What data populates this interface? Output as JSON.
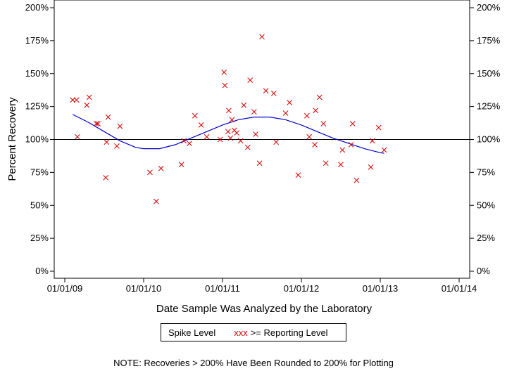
{
  "chart_data": {
    "type": "scatter",
    "xlabel": "Date Sample Was Analyzed by the Laboratory",
    "ylabel": "Percent Recovery",
    "x_ticks": [
      "01/01/09",
      "01/01/10",
      "01/01/11",
      "01/01/12",
      "01/01/13",
      "01/01/14"
    ],
    "xlim": [
      2009,
      2014
    ],
    "ylim": [
      0,
      200
    ],
    "y_ticks": [
      0,
      25,
      50,
      75,
      100,
      125,
      150,
      175,
      200
    ],
    "y_tick_labels": [
      "0%",
      "25%",
      "50%",
      "75%",
      "100%",
      "125%",
      "150%",
      "175%",
      "200%"
    ],
    "reference_line": 100,
    "x_axis_format": "decimal_year",
    "series": [
      {
        "name": ">= Reporting Level",
        "marker": "x",
        "color": "#d40000",
        "points": [
          [
            2009.1,
            130
          ],
          [
            2009.15,
            130
          ],
          [
            2009.16,
            102
          ],
          [
            2009.28,
            126
          ],
          [
            2009.31,
            132
          ],
          [
            2009.4,
            112
          ],
          [
            2009.42,
            112
          ],
          [
            2009.52,
            71
          ],
          [
            2009.53,
            98
          ],
          [
            2009.55,
            117
          ],
          [
            2009.66,
            95
          ],
          [
            2009.7,
            110
          ],
          [
            2010.08,
            75
          ],
          [
            2010.16,
            53
          ],
          [
            2010.22,
            78
          ],
          [
            2010.48,
            81
          ],
          [
            2010.51,
            99
          ],
          [
            2010.58,
            97
          ],
          [
            2010.65,
            118
          ],
          [
            2010.73,
            111
          ],
          [
            2010.8,
            102
          ],
          [
            2010.97,
            100
          ],
          [
            2011.02,
            151
          ],
          [
            2011.03,
            141
          ],
          [
            2011.07,
            106
          ],
          [
            2011.08,
            122
          ],
          [
            2011.1,
            101
          ],
          [
            2011.12,
            115
          ],
          [
            2011.15,
            107
          ],
          [
            2011.18,
            105
          ],
          [
            2011.23,
            99
          ],
          [
            2011.27,
            126
          ],
          [
            2011.32,
            94
          ],
          [
            2011.35,
            145
          ],
          [
            2011.4,
            121
          ],
          [
            2011.42,
            104
          ],
          [
            2011.47,
            82
          ],
          [
            2011.5,
            178
          ],
          [
            2011.55,
            137
          ],
          [
            2011.65,
            135
          ],
          [
            2011.68,
            98
          ],
          [
            2011.8,
            120
          ],
          [
            2011.85,
            128
          ],
          [
            2011.96,
            73
          ],
          [
            2012.07,
            118
          ],
          [
            2012.1,
            102
          ],
          [
            2012.17,
            96
          ],
          [
            2012.18,
            122
          ],
          [
            2012.23,
            132
          ],
          [
            2012.28,
            112
          ],
          [
            2012.31,
            82
          ],
          [
            2012.5,
            81
          ],
          [
            2012.52,
            92
          ],
          [
            2012.63,
            96
          ],
          [
            2012.65,
            112
          ],
          [
            2012.7,
            69
          ],
          [
            2012.88,
            79
          ],
          [
            2012.9,
            99
          ],
          [
            2012.98,
            109
          ],
          [
            2013.05,
            92
          ]
        ]
      }
    ],
    "smooth_curve": {
      "color": "#0000cc",
      "points": [
        [
          2009.1,
          119
        ],
        [
          2009.3,
          113
        ],
        [
          2009.5,
          106
        ],
        [
          2009.7,
          99
        ],
        [
          2009.9,
          94
        ],
        [
          2010.0,
          93
        ],
        [
          2010.2,
          93
        ],
        [
          2010.4,
          96
        ],
        [
          2010.6,
          101
        ],
        [
          2010.8,
          106
        ],
        [
          2011.0,
          111
        ],
        [
          2011.2,
          115
        ],
        [
          2011.4,
          117
        ],
        [
          2011.6,
          117
        ],
        [
          2011.8,
          115
        ],
        [
          2012.0,
          111
        ],
        [
          2012.2,
          106
        ],
        [
          2012.4,
          101
        ],
        [
          2012.6,
          97
        ],
        [
          2012.8,
          93
        ],
        [
          2013.0,
          90
        ],
        [
          2013.05,
          89.5
        ]
      ]
    }
  },
  "legend": {
    "title": "Spike Level",
    "marker_text": "xxx",
    "series_label": ">= Reporting Level"
  },
  "note": "NOTE: Recoveries > 200% Have Been Rounded to 200% for Plotting"
}
